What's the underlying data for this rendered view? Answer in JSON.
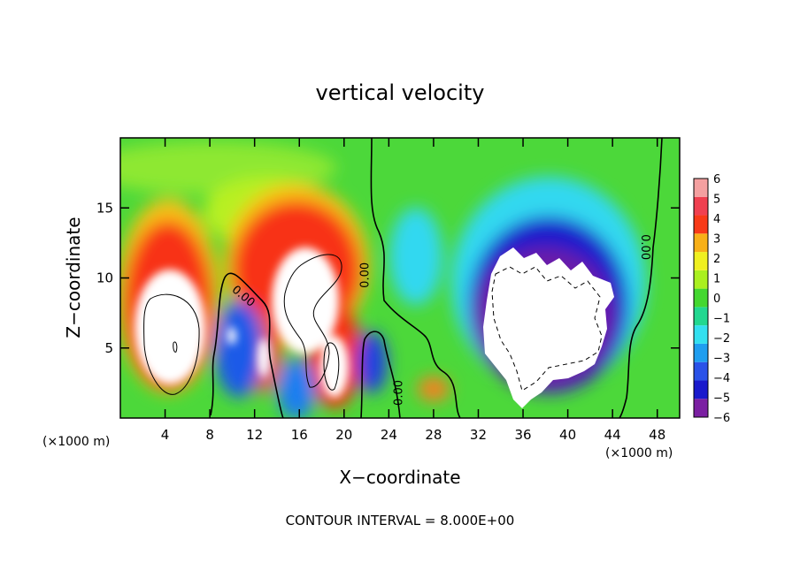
{
  "chart_data": {
    "type": "heatmap",
    "title": "vertical velocity",
    "xlabel": "X−coordinate",
    "ylabel": "Z−coordinate",
    "x_unit_left": "(×1000 m)",
    "x_unit_right": "(×1000 m)",
    "footer": "CONTOUR INTERVAL = 8.000E+00",
    "xlim": [
      0,
      50
    ],
    "ylim": [
      0,
      20
    ],
    "x_ticks": [
      4,
      8,
      12,
      16,
      20,
      24,
      28,
      32,
      36,
      40,
      44,
      48
    ],
    "x_tick_labels": [
      "4",
      "8",
      "12",
      "16",
      "20",
      "24",
      "28",
      "32",
      "36",
      "40",
      "44",
      "48"
    ],
    "y_ticks": [
      5,
      10,
      15
    ],
    "y_tick_labels": [
      "5",
      "10",
      "15"
    ],
    "colorbar": {
      "levels": [
        -6,
        -5,
        -4,
        -3,
        -2,
        -1,
        0,
        1,
        2,
        3,
        4,
        5,
        6
      ],
      "labels": [
        "−6",
        "−5",
        "−4",
        "−3",
        "−2",
        "−1",
        "0",
        "1",
        "2",
        "3",
        "4",
        "5",
        "6"
      ],
      "colors": [
        "#7b1fa2",
        "#1a1acc",
        "#2a52e8",
        "#1f9ef0",
        "#33e0f0",
        "#22d890",
        "#44d830",
        "#aaf020",
        "#f0f020",
        "#f8b018",
        "#f83a18",
        "#f04050",
        "#f4a0a0"
      ]
    },
    "contour_labels": [
      {
        "text": "0.00",
        "x": 10.8,
        "y": 8.5,
        "angle": 40
      },
      {
        "text": "0.00",
        "x": 22.2,
        "y": 10.2,
        "angle": -90
      },
      {
        "text": "0.00",
        "x": 25.2,
        "y": 1.8,
        "angle": -90
      },
      {
        "text": "0.00",
        "x": 46.6,
        "y": 12.2,
        "angle": 90
      }
    ],
    "features": [
      {
        "kind": "updraft",
        "x": 5.0,
        "y": 6.5,
        "value": 7.5
      },
      {
        "kind": "updraft",
        "x": 16.2,
        "y": 8.5,
        "value": 8.5
      },
      {
        "kind": "updraft",
        "x": 18.7,
        "y": 4.0,
        "value": 6.5
      },
      {
        "kind": "updraft",
        "x": 12.6,
        "y": 4.5,
        "value": 5.0
      },
      {
        "kind": "updraft",
        "x": 10.2,
        "y": 5.8,
        "value": 4.5
      },
      {
        "kind": "downdraft",
        "x": 36.5,
        "y": 6.5,
        "value": -8.0
      },
      {
        "kind": "downdraft",
        "x": 10.5,
        "y": 5.0,
        "value": -5.0
      },
      {
        "kind": "downdraft",
        "x": 22.5,
        "y": 4.0,
        "value": -4.0
      },
      {
        "kind": "downdraft",
        "x": 27.0,
        "y": 11.0,
        "value": -2.0
      }
    ]
  }
}
